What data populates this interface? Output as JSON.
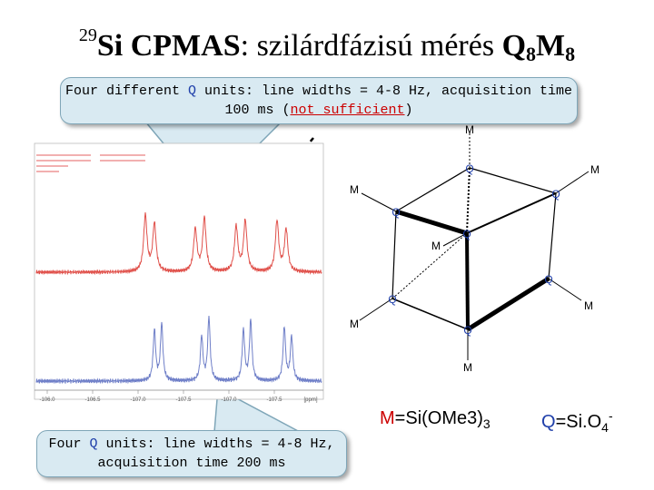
{
  "title": {
    "superscript": "29",
    "nucleus": "Si",
    "technique": "CPMAS",
    "rest": ": szilárdfázisú mérés ",
    "formula_q": "Q",
    "formula_q_sub": "8",
    "formula_m": "M",
    "formula_m_sub": "8"
  },
  "callout_top": {
    "part1": "Four different ",
    "q": "Q",
    "part2": " units: line widths = 4-8 Hz, acquisition time",
    "part3": "100 ms (",
    "warning": "not sufficient",
    "part4": ")"
  },
  "callout_bottom": {
    "part1": "Four ",
    "q": "Q",
    "part2": " units: line widths = 4-8 Hz,",
    "part3": "acquisition time 200 ms"
  },
  "spectrum": {
    "x_ticks": [
      "-106.0",
      "-106.5",
      "-107.0",
      "-107.5",
      "-107.0",
      "-107.5"
    ],
    "x_unit": "[ppm]",
    "colors": {
      "top": "#e0504a",
      "bottom": "#6f7fc8"
    }
  },
  "structure": {
    "labels_m": [
      "M",
      "M",
      "M",
      "M",
      "M",
      "M",
      "M",
      "M"
    ],
    "labels_q": [
      "Q",
      "Q",
      "Q",
      "Q",
      "Q",
      "Q",
      "Q",
      "Q"
    ]
  },
  "legend": {
    "m_letter": "M",
    "m_def": "=Si(OMe3)",
    "m_sub": "3",
    "q_letter": "Q",
    "q_def": "=Si.O",
    "q_sub": "4",
    "q_sup": "-"
  },
  "colors": {
    "accent_red": "#cc0000",
    "accent_blue": "#1f3faa",
    "callout_bg": "#d9eaf2"
  }
}
